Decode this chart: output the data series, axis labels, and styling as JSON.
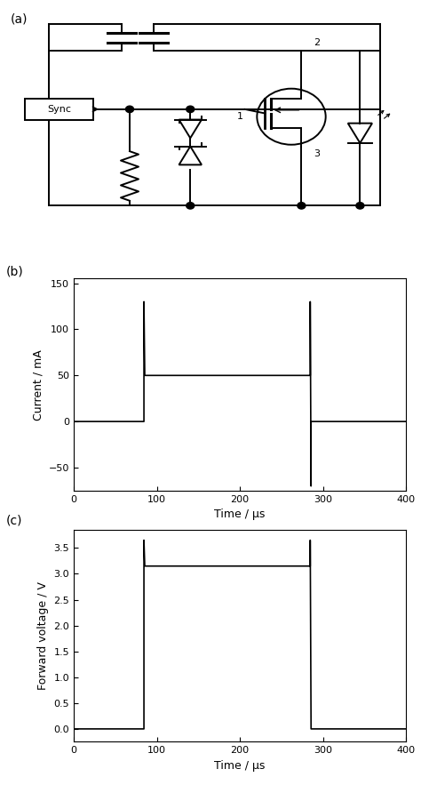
{
  "fig_width": 4.74,
  "fig_height": 8.83,
  "dpi": 100,
  "bg_color": "#ffffff",
  "plot_b": {
    "xlabel": "Time / μs",
    "ylabel": "Current / mA",
    "xlim": [
      0,
      400
    ],
    "ylim": [
      -75,
      155
    ],
    "xticks": [
      0,
      100,
      200,
      300,
      400
    ],
    "yticks": [
      -50,
      0,
      50,
      100,
      150
    ],
    "time_rise": 85,
    "time_fall": 285,
    "current_on": 50,
    "current_spike_up": 130,
    "current_spike_down": -70,
    "line_color": "#000000",
    "line_width": 1.2
  },
  "plot_c": {
    "xlabel": "Time / μs",
    "ylabel": "Forward voltage / V",
    "xlim": [
      0,
      400
    ],
    "ylim": [
      -0.25,
      3.85
    ],
    "xticks": [
      0,
      100,
      200,
      300,
      400
    ],
    "yticks": [
      0.0,
      0.5,
      1.0,
      1.5,
      2.0,
      2.5,
      3.0,
      3.5
    ],
    "time_rise": 85,
    "time_fall": 285,
    "voltage_on": 3.15,
    "voltage_spike_up": 3.65,
    "line_color": "#000000",
    "line_width": 1.2
  }
}
